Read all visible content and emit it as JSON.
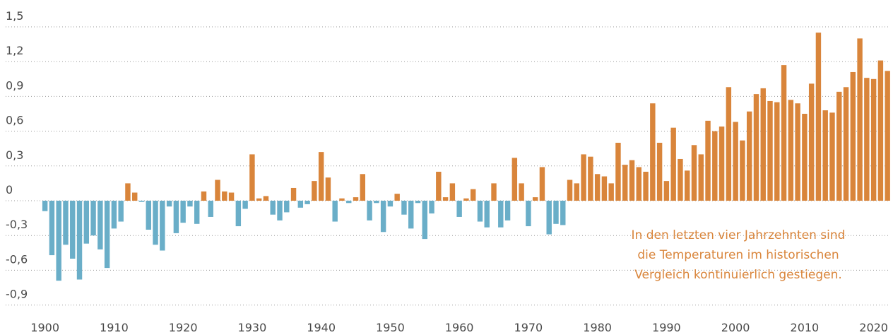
{
  "chart_data": {
    "type": "bar",
    "x": [
      1900,
      1901,
      1902,
      1903,
      1904,
      1905,
      1906,
      1907,
      1908,
      1909,
      1910,
      1911,
      1912,
      1913,
      1914,
      1915,
      1916,
      1917,
      1918,
      1919,
      1920,
      1921,
      1922,
      1923,
      1924,
      1925,
      1926,
      1927,
      1928,
      1929,
      1930,
      1931,
      1932,
      1933,
      1934,
      1935,
      1936,
      1937,
      1938,
      1939,
      1940,
      1941,
      1942,
      1943,
      1944,
      1945,
      1946,
      1947,
      1948,
      1949,
      1950,
      1951,
      1952,
      1953,
      1954,
      1955,
      1956,
      1957,
      1958,
      1959,
      1960,
      1961,
      1962,
      1963,
      1964,
      1965,
      1966,
      1967,
      1968,
      1969,
      1970,
      1971,
      1972,
      1973,
      1974,
      1975,
      1976,
      1977,
      1978,
      1979,
      1980,
      1981,
      1982,
      1983,
      1984,
      1985,
      1986,
      1987,
      1988,
      1989,
      1990,
      1991,
      1992,
      1993,
      1994,
      1995,
      1996,
      1997,
      1998,
      1999,
      2000,
      2001,
      2002,
      2003,
      2004,
      2005,
      2006,
      2007,
      2008,
      2009,
      2010,
      2011,
      2012,
      2013,
      2014,
      2015,
      2016,
      2017,
      2018,
      2019,
      2020,
      2021,
      2022
    ],
    "values": [
      -0.09,
      -0.47,
      -0.69,
      -0.38,
      -0.5,
      -0.68,
      -0.37,
      -0.3,
      -0.42,
      -0.58,
      -0.24,
      -0.18,
      0.15,
      0.07,
      -0.01,
      -0.25,
      -0.38,
      -0.43,
      -0.05,
      -0.28,
      -0.19,
      -0.05,
      -0.2,
      0.08,
      -0.14,
      0.18,
      0.08,
      0.07,
      -0.22,
      -0.07,
      0.4,
      0.02,
      0.04,
      -0.12,
      -0.17,
      -0.1,
      0.11,
      -0.06,
      -0.03,
      0.17,
      0.42,
      0.2,
      -0.18,
      0.02,
      -0.02,
      0.03,
      0.23,
      -0.17,
      -0.02,
      -0.27,
      -0.05,
      0.06,
      -0.12,
      -0.24,
      -0.02,
      -0.33,
      -0.11,
      0.25,
      0.03,
      0.15,
      -0.14,
      0.02,
      0.1,
      -0.18,
      -0.23,
      0.15,
      -0.23,
      -0.17,
      0.37,
      0.15,
      -0.22,
      0.03,
      0.29,
      -0.29,
      -0.2,
      -0.21,
      0.18,
      0.15,
      0.4,
      0.38,
      0.23,
      0.21,
      0.15,
      0.5,
      0.31,
      0.35,
      0.29,
      0.25,
      0.84,
      0.5,
      0.17,
      0.63,
      0.36,
      0.26,
      0.48,
      0.4,
      0.69,
      0.6,
      0.64,
      0.98,
      0.68,
      0.52,
      0.77,
      0.92,
      0.97,
      0.86,
      0.85,
      1.17,
      0.87,
      0.84,
      0.75,
      1.01,
      1.45,
      0.78,
      0.76,
      0.94,
      0.98,
      1.11,
      1.4,
      1.06,
      1.05,
      1.21,
      1.12
    ],
    "positive_color": "#d9853b",
    "negative_color": "#6aaec8",
    "xlim": [
      1894,
      2022.8
    ],
    "xticks": [
      1900,
      1910,
      1920,
      1930,
      1940,
      1950,
      1960,
      1970,
      1980,
      1990,
      2000,
      2010,
      2020
    ],
    "ylim": [
      -1.05,
      1.6
    ],
    "yticks": [
      {
        "value": 1.5,
        "label": "1,5"
      },
      {
        "value": 1.2,
        "label": "1,2"
      },
      {
        "value": 0.9,
        "label": "0,9"
      },
      {
        "value": 0.6,
        "label": "0,6"
      },
      {
        "value": 0.3,
        "label": "0,3"
      },
      0,
      {
        "value": -0.3,
        "label": "-0,3"
      },
      {
        "value": -0.6,
        "label": "-0,6"
      },
      {
        "value": -0.9,
        "label": "-0,9"
      }
    ],
    "grid": true,
    "annotation": [
      "In den letzten vier Jahrzehnten sind",
      "die Temperaturen im historischen",
      "Vergleich kontinuierlich gestiegen."
    ],
    "annotation_color": "#d9853b"
  }
}
